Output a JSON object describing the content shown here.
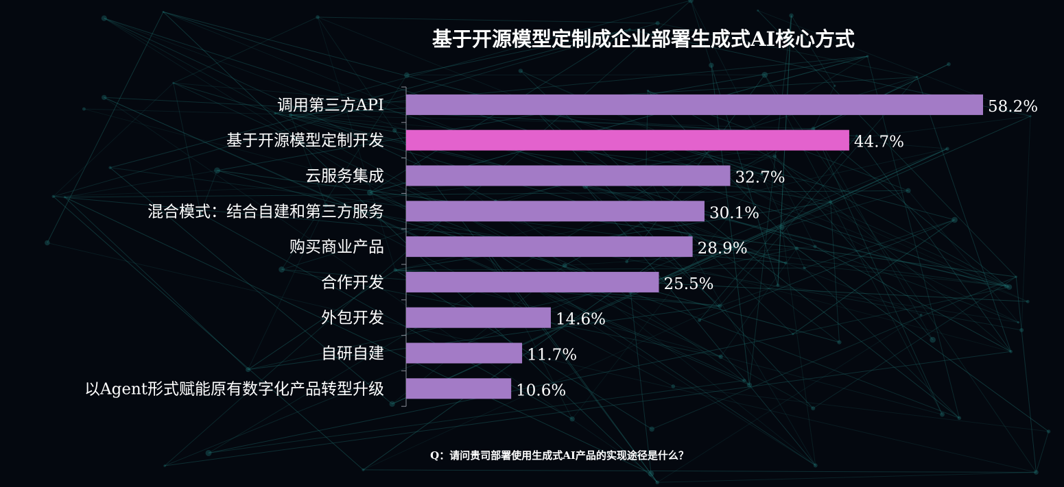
{
  "chart_data": {
    "type": "bar",
    "orientation": "horizontal",
    "title": "基于开源模型定制成企业部署生成式AI核心方式",
    "question": "Q：请问贵司部署使用生成式AI产品的实现途径是什么？",
    "categories": [
      "调用第三方API",
      "基于开源模型定制开发",
      "云服务集成",
      "混合模式：结合自建和第三方服务",
      "购买商业产品",
      "合作开发",
      "外包开发",
      "自研自建",
      "以Agent形式赋能原有数字化产品转型升级"
    ],
    "values": [
      58.2,
      44.7,
      32.7,
      30.1,
      28.9,
      25.5,
      14.6,
      11.7,
      10.6
    ],
    "value_labels": [
      "58.2%",
      "44.7%",
      "32.7%",
      "30.1%",
      "28.9%",
      "25.5%",
      "14.6%",
      "11.7%",
      "10.6%"
    ],
    "highlight_index": 1,
    "unit": "%",
    "xlim": [
      0,
      60
    ],
    "grid": false,
    "colors": {
      "bar": "#a37bc6",
      "highlight": "#e362cd",
      "background": "#04080f",
      "network": "#1f6f6e"
    }
  }
}
